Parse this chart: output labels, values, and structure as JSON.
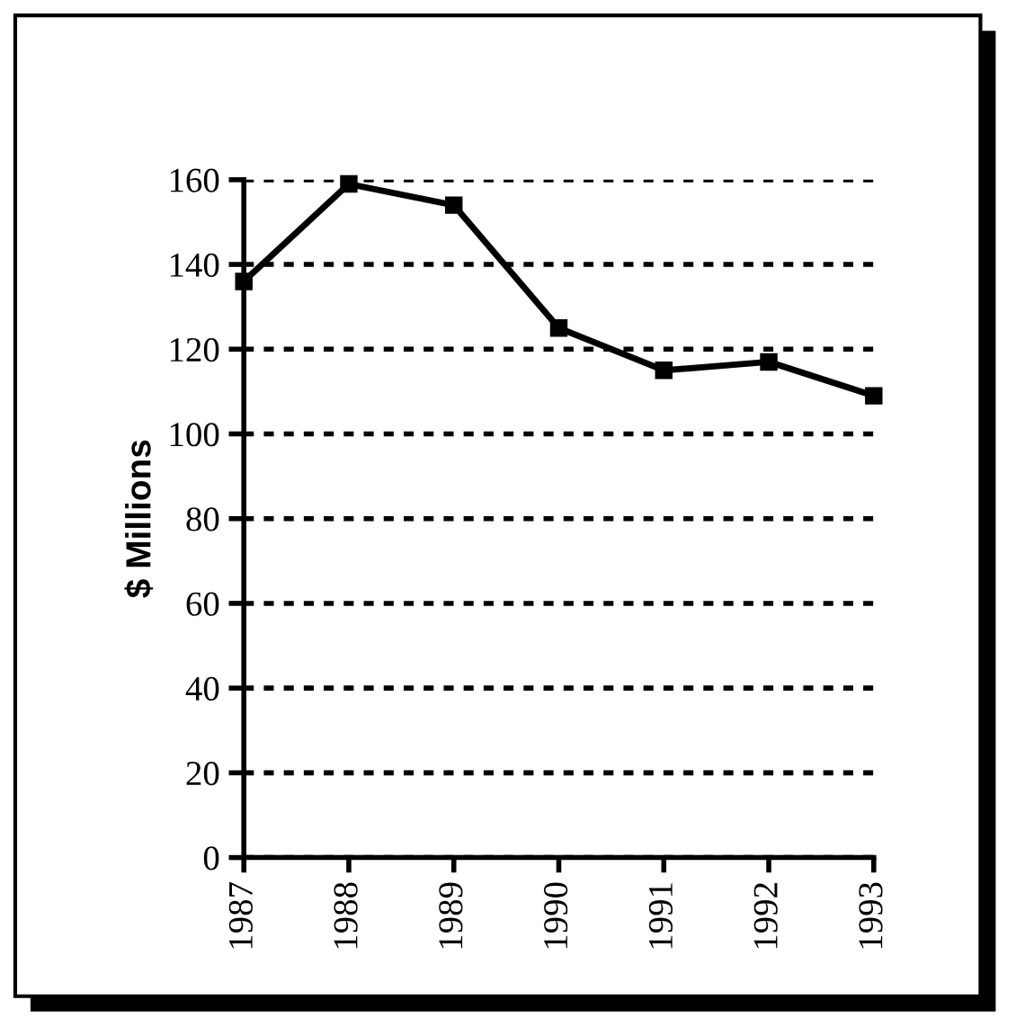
{
  "chart_data": {
    "type": "line",
    "ylabel": "$ Millions",
    "x": [
      1987,
      1988,
      1989,
      1990,
      1991,
      1992,
      1993
    ],
    "series": [
      {
        "color": "#000000",
        "values": [
          136,
          159,
          154,
          125,
          115,
          117,
          109
        ]
      }
    ],
    "xlim": [
      1987,
      1993
    ],
    "xticks": [
      1987,
      1988,
      1989,
      1990,
      1991,
      1992,
      1993
    ],
    "ylim": [
      0,
      160
    ],
    "yticks": [
      0,
      20,
      40,
      60,
      80,
      100,
      120,
      140,
      160
    ],
    "grid": "y",
    "marker": "square",
    "line_style": "solid"
  }
}
